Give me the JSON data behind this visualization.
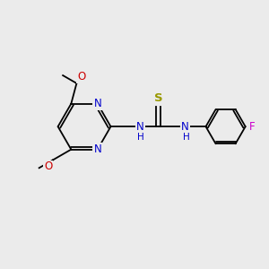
{
  "bg_color": "#ebebeb",
  "bond_color": "#000000",
  "N_color": "#0000cc",
  "O_color": "#cc0000",
  "S_color": "#999900",
  "F_color": "#cc00cc",
  "font_size": 8.5,
  "figsize": [
    3.0,
    3.0
  ],
  "dpi": 100,
  "xlim": [
    0,
    10
  ],
  "ylim": [
    0,
    10
  ]
}
